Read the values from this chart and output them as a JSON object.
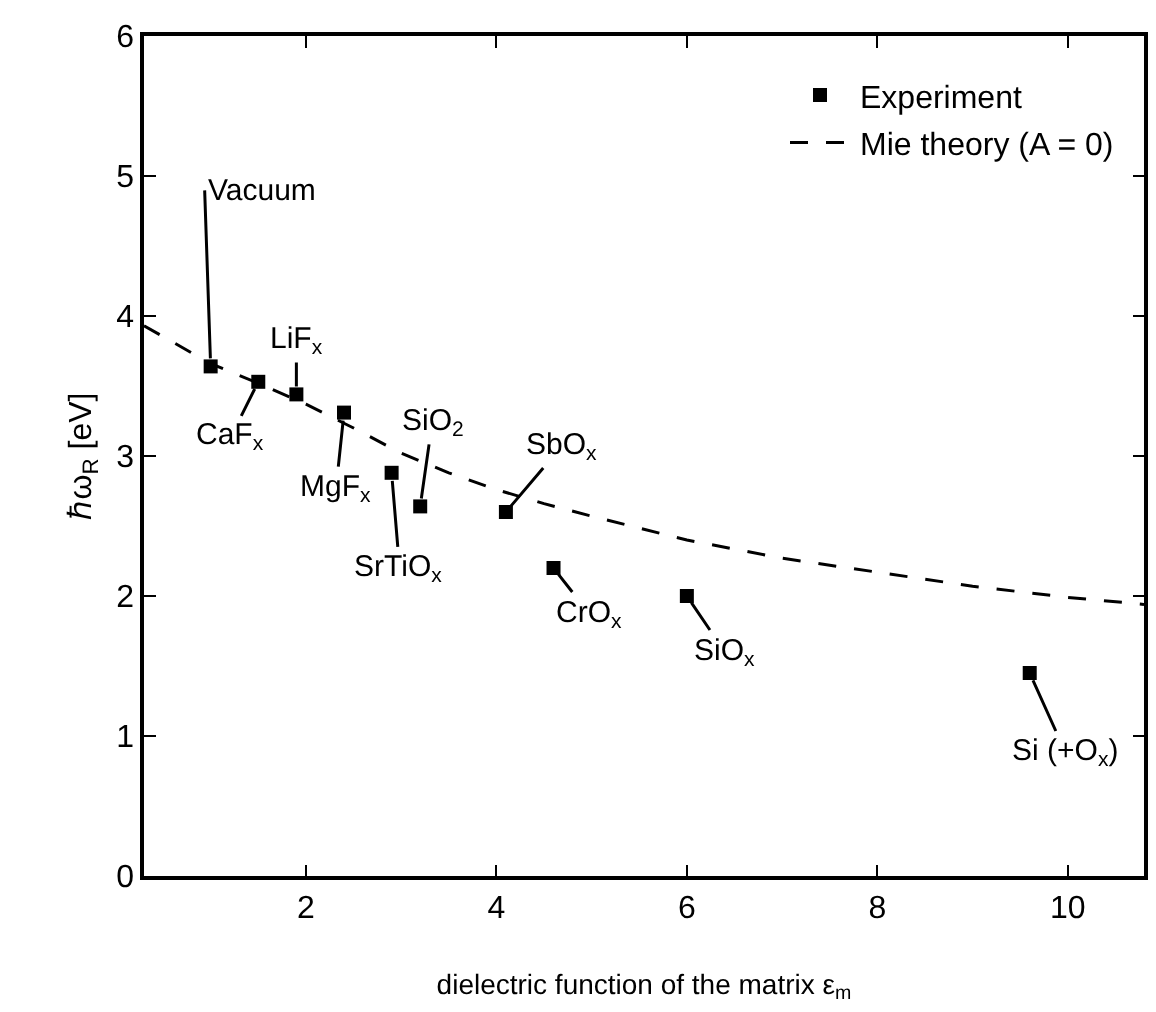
{
  "chart_data": {
    "type": "scatter",
    "xlabel": "dielectric function of the matrix ε$_{m}$",
    "ylabel": "ℏω$_{R}$ [eV]",
    "series": [
      {
        "name": "Experiment",
        "color": "#000000",
        "marker": "square",
        "x": [
          1.0,
          1.5,
          1.9,
          2.4,
          2.9,
          3.2,
          4.1,
          4.6,
          6.0,
          9.6
        ],
        "values": [
          3.64,
          3.53,
          3.44,
          3.31,
          2.88,
          2.64,
          2.6,
          2.2,
          2.0,
          1.45
        ]
      },
      {
        "name": "Mie theory (A = 0)",
        "type": "line",
        "color": "#000000",
        "marker": "none",
        "line_style": "dashed",
        "x": [
          0.3,
          1,
          1.5,
          2,
          2.5,
          3,
          3.5,
          4,
          4.5,
          5,
          6,
          7,
          8,
          9,
          10,
          10.8
        ],
        "values": [
          3.93,
          3.66,
          3.52,
          3.37,
          3.2,
          3.02,
          2.88,
          2.76,
          2.66,
          2.57,
          2.4,
          2.27,
          2.17,
          2.07,
          1.99,
          1.94
        ]
      }
    ],
    "annotations": [
      {
        "text": "Vacuum",
        "x": 1.0,
        "y": 3.64
      },
      {
        "text": "CaF$_{x}$",
        "x": 1.5,
        "y": 3.53
      },
      {
        "text": "LiF$_{x}$",
        "x": 1.9,
        "y": 3.44
      },
      {
        "text": "MgF$_{x}$",
        "x": 2.4,
        "y": 3.31
      },
      {
        "text": "SrTiO$_{x}$",
        "x": 2.9,
        "y": 2.88
      },
      {
        "text": "SiO$_{2}$",
        "x": 3.2,
        "y": 2.64
      },
      {
        "text": "SbO$_{x}$",
        "x": 4.1,
        "y": 2.6
      },
      {
        "text": "CrO$_{x}$",
        "x": 4.6,
        "y": 2.2
      },
      {
        "text": "SiO$_{x}$",
        "x": 6.0,
        "y": 2.0
      },
      {
        "text": "Si (+O$_{x}$)",
        "x": 9.6,
        "y": 1.45
      }
    ],
    "xlim": [
      0.3,
      10.8
    ],
    "xticks": [
      2,
      4,
      6,
      8,
      10
    ],
    "ylim": [
      0,
      6
    ],
    "yticks": [
      0,
      1,
      2,
      3,
      4,
      5,
      6
    ],
    "legend": "top right"
  }
}
